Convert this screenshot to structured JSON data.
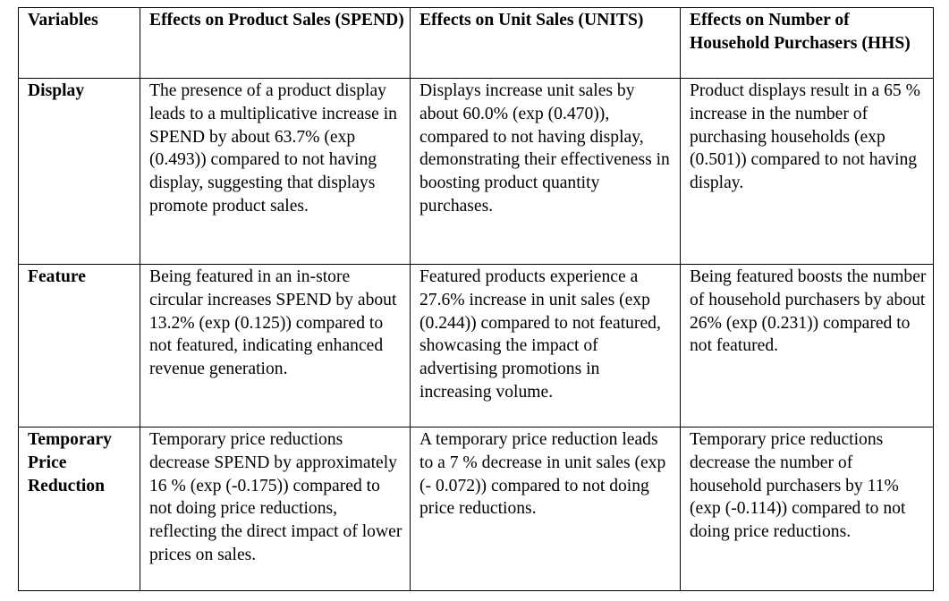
{
  "table": {
    "headers": [
      "Variables",
      "Effects on Product Sales (SPEND)",
      "Effects on Unit Sales (UNITS)",
      "Effects on Number of Household Purchasers (HHS)"
    ],
    "rows": [
      {
        "variable": "Display",
        "spend": "The presence of a product display leads to a multiplicative increase in SPEND by about 63.7% (exp (0.493)) compared to not having display, suggesting that displays promote product sales.",
        "units": "Displays increase unit sales by about 60.0% (exp (0.470)), compared to not having display, demonstrating their effectiveness in boosting product quantity purchases.",
        "hhs": "Product displays result in a 65 % increase in the number of purchasing households (exp (0.501)) compared to not having display."
      },
      {
        "variable": "Feature",
        "spend": "Being featured in an in-store circular increases SPEND by about 13.2% (exp (0.125)) compared to not featured, indicating enhanced revenue generation.",
        "units": "Featured products experience a 27.6% increase in unit sales (exp (0.244)) compared to not featured, showcasing the impact of advertising promotions in increasing volume.",
        "hhs": "Being featured boosts the number of household purchasers by about 26% (exp (0.231)) compared to not featured."
      },
      {
        "variable": "Temporary Price Reduction",
        "spend": "Temporary price reductions decrease SPEND by approximately 16 % (exp (-0.175)) compared to not doing price reductions, reflecting the direct impact of lower prices on sales.",
        "units": "A temporary price reduction leads to a 7 % decrease in unit sales (exp (- 0.072)) compared to not doing price reductions.",
        "hhs": "Temporary price reductions decrease the number of household purchasers by 11% (exp (-0.114)) compared to not doing price reductions."
      }
    ]
  }
}
